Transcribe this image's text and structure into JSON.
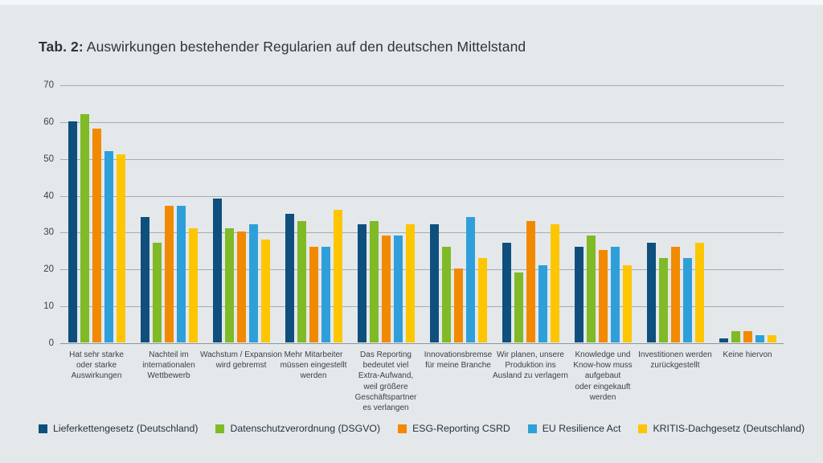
{
  "page": {
    "title_prefix": "Tab. 2:",
    "title_rest": " Auswirkungen bestehender Regularien auf den deutschen Mittelstand"
  },
  "chart_data": {
    "type": "bar",
    "grouped": true,
    "title": "Tab. 2: Auswirkungen bestehender Regularien auf den deutschen Mittelstand",
    "ylim": [
      0,
      70
    ],
    "yticks": [
      0,
      10,
      20,
      30,
      40,
      50,
      60,
      70
    ],
    "grid": true,
    "legend_position": "bottom",
    "categories": [
      "Hat sehr starke oder starke Auswirkungen",
      "Nachteil im internationalen Wettbewerb",
      "Wachstum / Expansion wird gebremst",
      "Mehr Mitarbeiter müssen eingestellt werden",
      "Das Reporting bedeutet viel Extra-Aufwand, weil größere Geschäftspartner es verlangen",
      "Innovationsbremse für meine Branche",
      "Wir planen, unsere Produktion ins Ausland zu verlagern",
      "Knowledge und Know-how muss aufgebaut oder eingekauft werden",
      "Investitionen werden zurückgestellt",
      "Keine hiervon"
    ],
    "category_label_lines": [
      [
        "Hat sehr starke",
        "oder starke",
        "Auswirkungen"
      ],
      [
        "Nachteil im",
        "internationalen",
        "Wettbewerb"
      ],
      [
        "Wachstum / Expansion",
        "wird gebremst"
      ],
      [
        "Mehr Mitarbeiter",
        "müssen eingestellt",
        "werden"
      ],
      [
        "Das Reporting",
        "bedeutet viel",
        "Extra-Aufwand,",
        "weil größere",
        "Geschäftspartner",
        "es verlangen"
      ],
      [
        "Innovationsbremse",
        "für meine Branche"
      ],
      [
        "Wir planen, unsere",
        "Produktion ins",
        "Ausland zu verlagern"
      ],
      [
        "Knowledge und",
        "Know-how muss",
        "aufgebaut",
        "oder eingekauft",
        "werden"
      ],
      [
        "Investitionen werden",
        "zurückgestellt"
      ],
      [
        "Keine hiervon"
      ]
    ],
    "series": [
      {
        "name": "Lieferkettengesetz (Deutschland)",
        "color": "#0f4f7d",
        "values": [
          60,
          34,
          39,
          35,
          32,
          32,
          27,
          26,
          27,
          1
        ]
      },
      {
        "name": "Datenschutzverordnung (DSGVO)",
        "color": "#80ba27",
        "values": [
          62,
          27,
          31,
          33,
          33,
          26,
          19,
          29,
          23,
          3
        ]
      },
      {
        "name": "ESG-Reporting CSRD",
        "color": "#f18a00",
        "values": [
          58,
          37,
          30,
          26,
          29,
          20,
          33,
          25,
          26,
          3
        ]
      },
      {
        "name": "EU Resilience Act",
        "color": "#2f9fda",
        "values": [
          52,
          37,
          32,
          26,
          29,
          34,
          21,
          26,
          23,
          2
        ]
      },
      {
        "name": "KRITIS-Dachgesetz (Deutschland)",
        "color": "#fdc600",
        "values": [
          51,
          31,
          28,
          36,
          32,
          23,
          32,
          21,
          27,
          2
        ]
      }
    ]
  }
}
